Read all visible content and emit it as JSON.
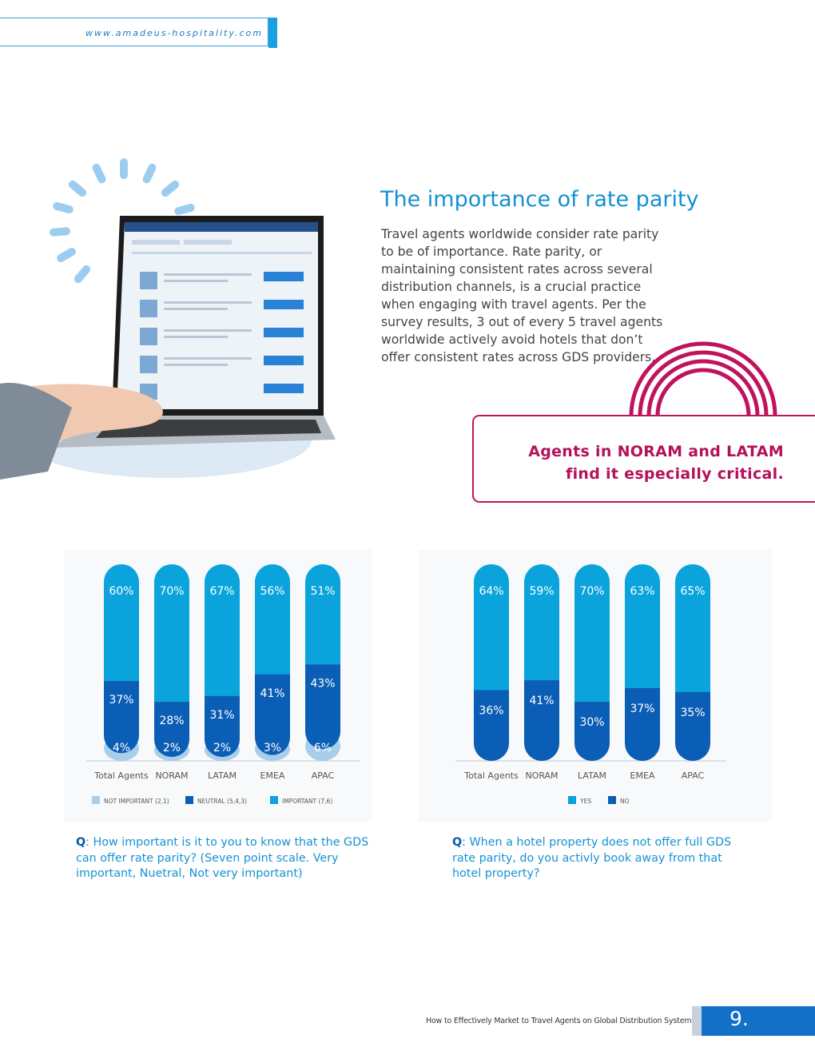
{
  "header": {
    "url": "www.amadeus-hospitality.com"
  },
  "section": {
    "title": "The importance of rate parity",
    "body": "Travel agents worldwide consider rate parity to be of importance. Rate parity, or maintaining consistent rates across several distribution channels, is a crucial practice when engaging with travel agents. Per the survey results, 3 out of every 5 travel agents worldwide actively avoid hotels that don’t offer consistent rates across GDS providers.",
    "callout_line1": "Agents in NORAM and LATAM",
    "callout_line2": "find it especially critical."
  },
  "colors": {
    "light": "#a8cfea",
    "dark": "#0b5eb5",
    "bright": "#0aa3dc",
    "magenta": "#c0135e",
    "accent": "#1aa0e0"
  },
  "chart_data": [
    {
      "type": "bar",
      "stacked": true,
      "categories": [
        "Total Agents",
        "NORAM",
        "LATAM",
        "EMEA",
        "APAC"
      ],
      "series": [
        {
          "name": "NOT IMPORTANT (2,1)",
          "values": [
            4,
            2,
            2,
            3,
            6
          ],
          "color": "#a8cfea"
        },
        {
          "name": "NEUTRAL (5,4,3)",
          "values": [
            37,
            28,
            31,
            41,
            43
          ],
          "color": "#0b5eb5"
        },
        {
          "name": "IMPORTANT (7,6)",
          "values": [
            60,
            70,
            67,
            56,
            51
          ],
          "color": "#0aa3dc"
        }
      ],
      "legend_position": "bottom",
      "question_label": "Q",
      "question": ": How important is it to you to know that the GDS can offer rate parity? (Seven point scale. Very important, Nuetral, Not very important)"
    },
    {
      "type": "bar",
      "stacked": true,
      "categories": [
        "Total Agents",
        "NORAM",
        "LATAM",
        "EMEA",
        "APAC"
      ],
      "series": [
        {
          "name": "NO",
          "values": [
            36,
            41,
            30,
            37,
            35
          ],
          "color": "#0b5eb5"
        },
        {
          "name": "YES",
          "values": [
            64,
            59,
            70,
            63,
            65
          ],
          "color": "#0aa3dc"
        }
      ],
      "legend_order": [
        "YES",
        "NO"
      ],
      "legend_position": "bottom",
      "question_label": "Q",
      "question": ": When a hotel property does not offer full GDS rate parity, do you activly book away from that hotel property?"
    }
  ],
  "footer": {
    "title": "How to Effectively Market to Travel Agents on Global Distribution Systems",
    "page": "9."
  }
}
